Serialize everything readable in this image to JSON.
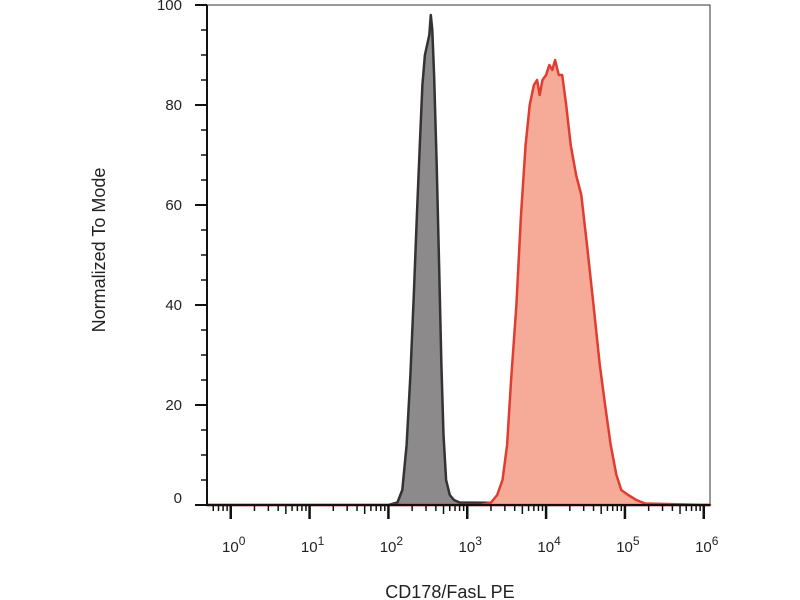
{
  "chart_data": {
    "type": "area",
    "xlabel": "CD178/FasL PE",
    "ylabel": "Normalized To Mode",
    "x_scale": "log10",
    "xlim": [
      0.5,
      1200000
    ],
    "ylim": [
      0,
      100
    ],
    "y_ticks": [
      0,
      20,
      40,
      60,
      80,
      100
    ],
    "x_ticks": [
      {
        "base": "10",
        "exp": "0",
        "value": 1
      },
      {
        "base": "10",
        "exp": "1",
        "value": 10
      },
      {
        "base": "10",
        "exp": "2",
        "value": 100
      },
      {
        "base": "10",
        "exp": "3",
        "value": 1000
      },
      {
        "base": "10",
        "exp": "4",
        "value": 10000
      },
      {
        "base": "10",
        "exp": "5",
        "value": 100000
      },
      {
        "base": "10",
        "exp": "6",
        "value": 1000000
      }
    ],
    "grid": false,
    "series": [
      {
        "fill": "#8c8a8a",
        "stroke": "#333333",
        "points": [
          [
            0.5,
            0
          ],
          [
            100,
            0
          ],
          [
            130,
            0.5
          ],
          [
            150,
            3
          ],
          [
            170,
            12
          ],
          [
            190,
            26
          ],
          [
            210,
            42
          ],
          [
            230,
            58
          ],
          [
            250,
            72
          ],
          [
            270,
            84
          ],
          [
            290,
            90
          ],
          [
            310,
            92
          ],
          [
            330,
            94
          ],
          [
            345,
            98
          ],
          [
            360,
            95
          ],
          [
            380,
            86
          ],
          [
            410,
            68
          ],
          [
            440,
            48
          ],
          [
            470,
            28
          ],
          [
            500,
            14
          ],
          [
            540,
            5
          ],
          [
            600,
            2
          ],
          [
            680,
            1
          ],
          [
            800,
            0.5
          ],
          [
            1200000,
            0
          ]
        ]
      },
      {
        "fill": "#f5ab98",
        "stroke": "#e03c32",
        "points": [
          [
            0.5,
            0
          ],
          [
            1500,
            0
          ],
          [
            2000,
            0.5
          ],
          [
            2400,
            2
          ],
          [
            2800,
            5
          ],
          [
            3200,
            12
          ],
          [
            3600,
            25
          ],
          [
            4200,
            40
          ],
          [
            4800,
            58
          ],
          [
            5500,
            72
          ],
          [
            6200,
            80
          ],
          [
            7000,
            84
          ],
          [
            7700,
            85
          ],
          [
            8300,
            82
          ],
          [
            9000,
            85
          ],
          [
            10000,
            86
          ],
          [
            11000,
            88
          ],
          [
            12000,
            87
          ],
          [
            13000,
            89
          ],
          [
            14500,
            86
          ],
          [
            16000,
            86
          ],
          [
            18000,
            80
          ],
          [
            20500,
            72
          ],
          [
            24000,
            66
          ],
          [
            28000,
            62
          ],
          [
            33000,
            52
          ],
          [
            40000,
            40
          ],
          [
            48000,
            28
          ],
          [
            56000,
            20
          ],
          [
            66000,
            12
          ],
          [
            78000,
            6
          ],
          [
            90000,
            3
          ],
          [
            110000,
            2
          ],
          [
            140000,
            1
          ],
          [
            180000,
            0.3
          ],
          [
            1200000,
            0
          ]
        ]
      }
    ]
  }
}
